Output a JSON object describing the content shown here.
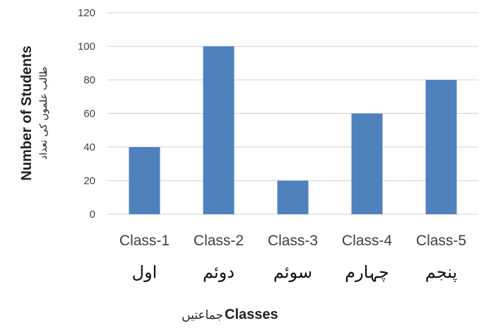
{
  "chart_data": {
    "type": "bar",
    "categories": [
      "Class-1",
      "Class-2",
      "Class-3",
      "Class-4",
      "Class-5"
    ],
    "categories_urdu": [
      "اول",
      "دوئم",
      "سوئم",
      "چہارم",
      "پنجم"
    ],
    "values": [
      40,
      100,
      20,
      60,
      80
    ],
    "ylabel": "Number of Students",
    "ylabel_urdu": "طالب علموں کی تعداد",
    "xlabel": "Classes",
    "xlabel_urdu": "جماعتیں",
    "ylim": [
      0,
      120
    ],
    "yticks": [
      0,
      20,
      40,
      60,
      80,
      100,
      120
    ],
    "grid": true,
    "bar_color": "#4F81BD",
    "grid_color": "#D9D9D9"
  }
}
